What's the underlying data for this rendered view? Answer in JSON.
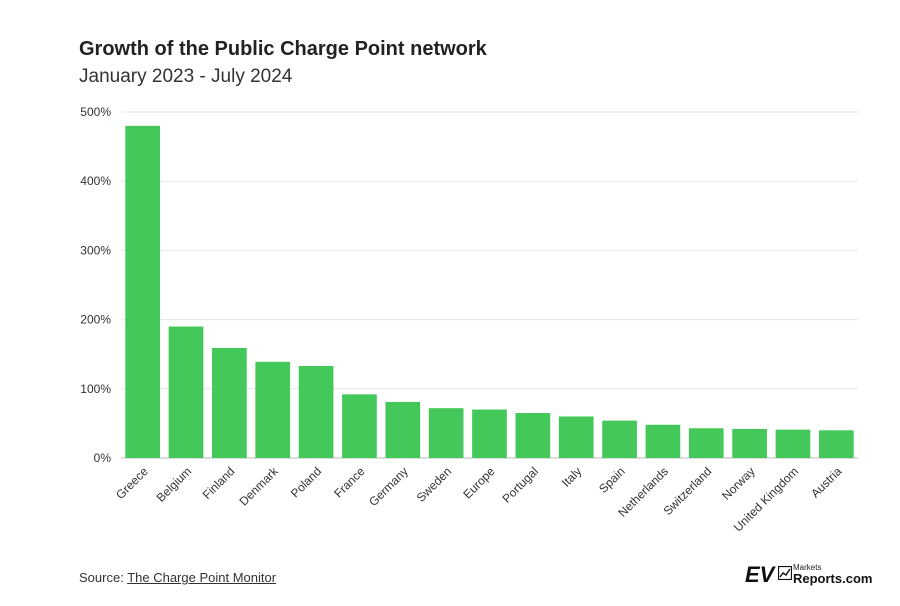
{
  "header": {
    "title": "Growth of the Public Charge Point network",
    "subtitle": "January 2023 - July 2024"
  },
  "footer": {
    "source_prefix": "Source: ",
    "source_link": "The Charge Point Monitor"
  },
  "logo": {
    "ev": "EV",
    "markets": "Markets",
    "reports": "Reports.com"
  },
  "colors": {
    "bar": "#44c85a",
    "grid": "#e6e6e6",
    "text": "#333333"
  },
  "chart_data": {
    "type": "bar",
    "title": "Growth of the Public Charge Point network",
    "subtitle": "January 2023 - July 2024",
    "categories": [
      "Greece",
      "Belgium",
      "Finland",
      "Denmark",
      "Poland",
      "France",
      "Germany",
      "Sweden",
      "Europe",
      "Portugal",
      "Italy",
      "Spain",
      "Netherlands",
      "Switzerland",
      "Norway",
      "United Kingdom",
      "Austria"
    ],
    "values": [
      480,
      190,
      159,
      139,
      133,
      92,
      81,
      72,
      70,
      65,
      60,
      54,
      48,
      43,
      42,
      41,
      40
    ],
    "ylim": [
      0,
      500
    ],
    "yticks": [
      0,
      100,
      200,
      300,
      400,
      500
    ],
    "ytick_labels": [
      "0%",
      "100%",
      "200%",
      "300%",
      "400%",
      "500%"
    ],
    "grid": true,
    "xlabel": "",
    "ylabel": ""
  }
}
